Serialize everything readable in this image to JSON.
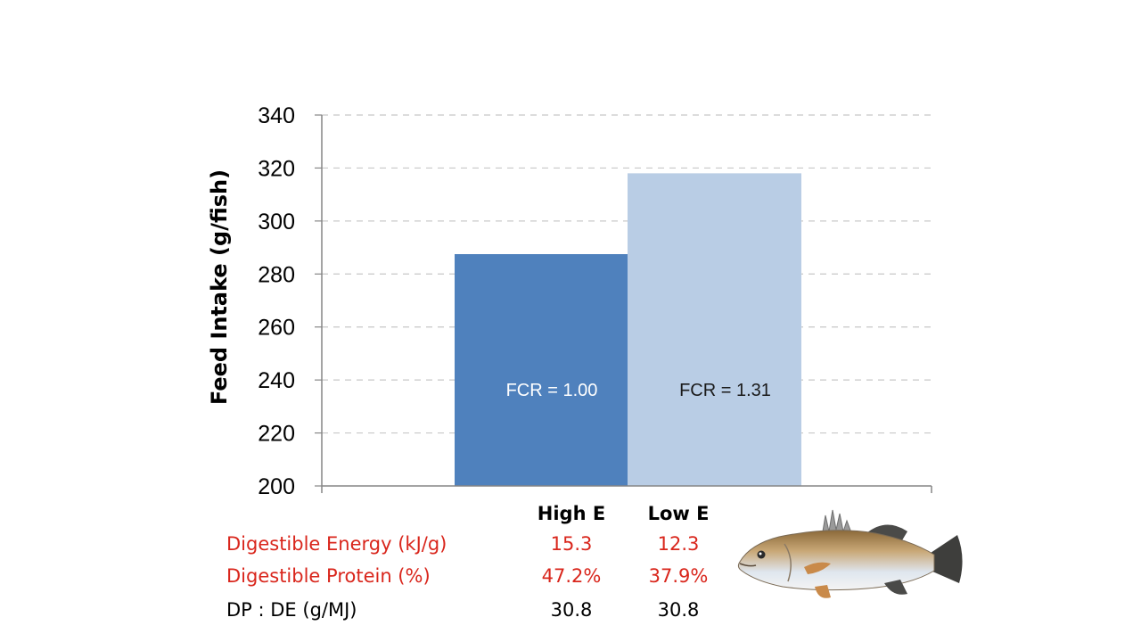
{
  "chart_data": {
    "type": "bar",
    "categories": [
      "High E",
      "Low E"
    ],
    "values": [
      287.5,
      318
    ],
    "bar_labels": [
      "FCR = 1.00",
      "FCR = 1.31"
    ],
    "ylabel": "Feed Intake (g/fish)",
    "ylim": [
      200,
      340
    ],
    "yticks": [
      "200",
      "220",
      "240",
      "260",
      "280",
      "300",
      "320",
      "340"
    ],
    "grid": "dashed horizontal",
    "colors": [
      "#4f81bd",
      "#b9cde5"
    ],
    "label_colors": [
      "#ffffff",
      "#1a1a1a"
    ]
  },
  "table": {
    "columns": [
      "High E",
      "Low E"
    ],
    "rows": [
      {
        "label": "Digestible Energy (kJ/g)",
        "values": [
          "15.3",
          "12.3"
        ],
        "color": "#d9261c"
      },
      {
        "label": "Digestible Protein (%)",
        "values": [
          "47.2%",
          "37.9%"
        ],
        "color": "#d9261c"
      },
      {
        "label": "DP : DE (g/MJ)",
        "values": [
          "30.8",
          "30.8"
        ],
        "color": "#000000"
      }
    ]
  },
  "image": {
    "icon": "barramundi-fish-icon"
  }
}
